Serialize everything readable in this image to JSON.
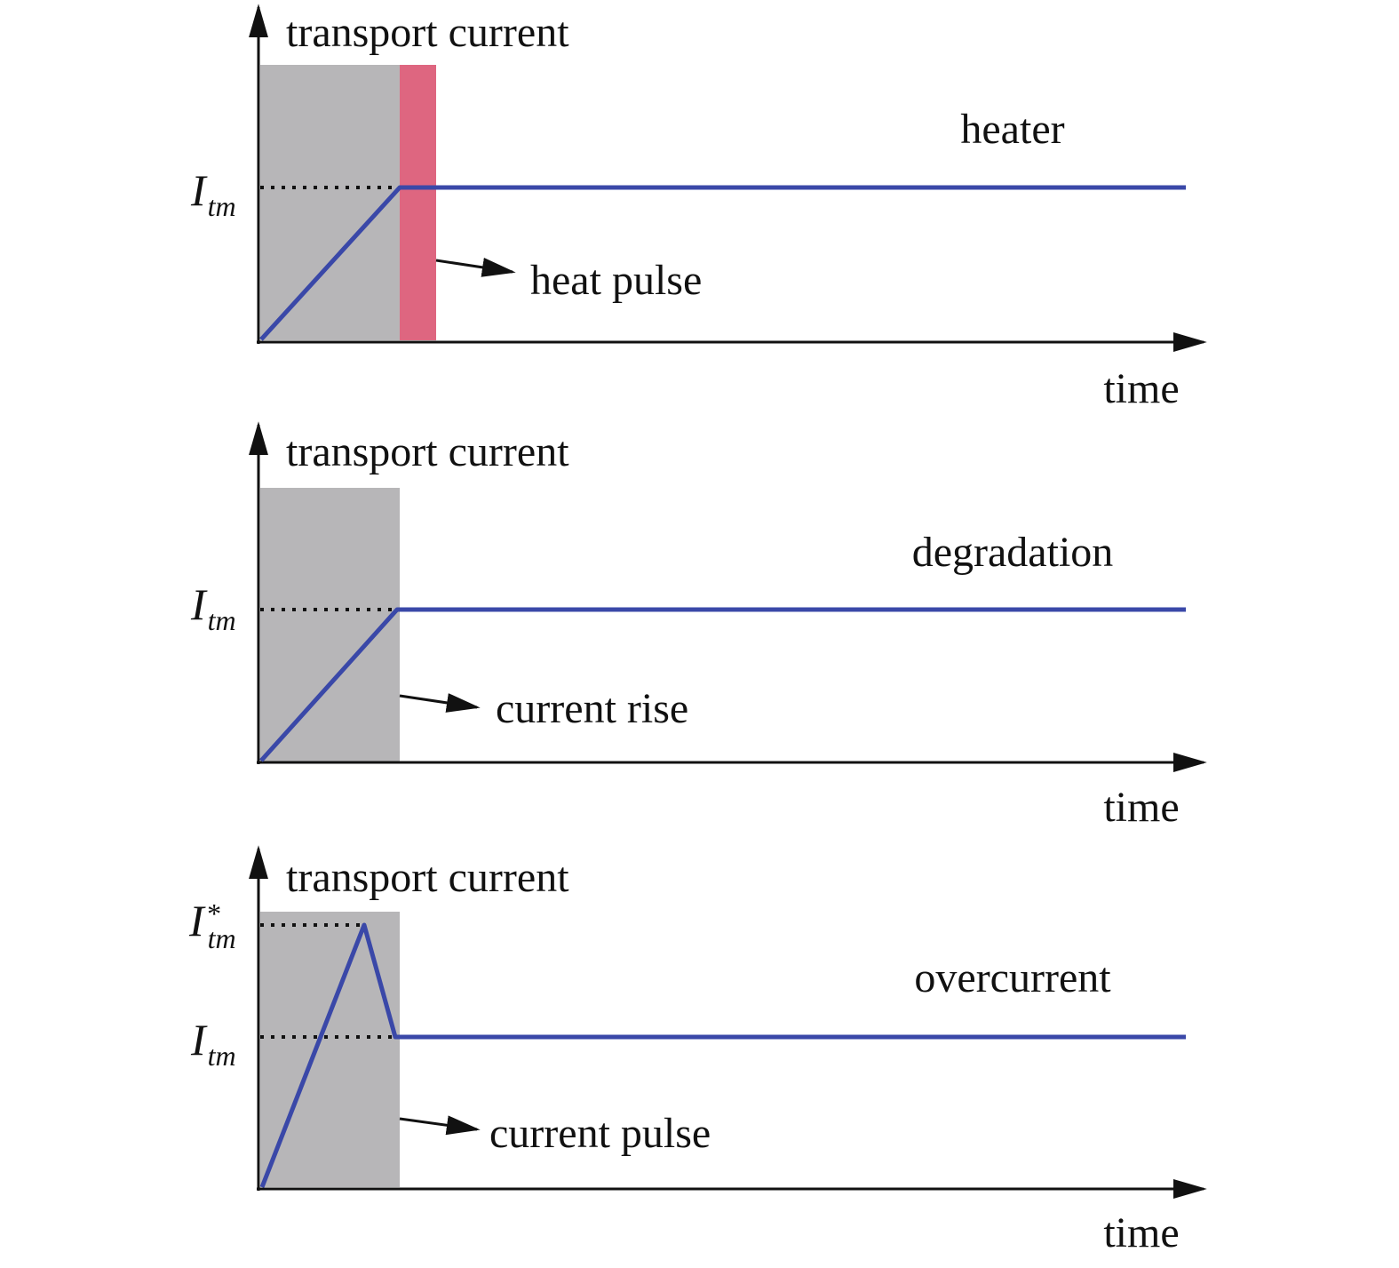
{
  "panels": [
    {
      "y_axis_label": "transport current",
      "x_axis_label": "time",
      "mode": "heater",
      "annotation": "heat pulse",
      "levels": [
        {
          "symbol": "I",
          "subscript": "tm"
        }
      ]
    },
    {
      "y_axis_label": "transport current",
      "x_axis_label": "time",
      "mode": "degradation",
      "annotation": "current rise",
      "levels": [
        {
          "symbol": "I",
          "subscript": "tm"
        }
      ]
    },
    {
      "y_axis_label": "transport current",
      "x_axis_label": "time",
      "mode": "overcurrent",
      "annotation": "current pulse",
      "levels": [
        {
          "symbol": "I",
          "superscript": "*",
          "subscript": "tm"
        },
        {
          "symbol": "I",
          "subscript": "tm"
        }
      ]
    }
  ]
}
